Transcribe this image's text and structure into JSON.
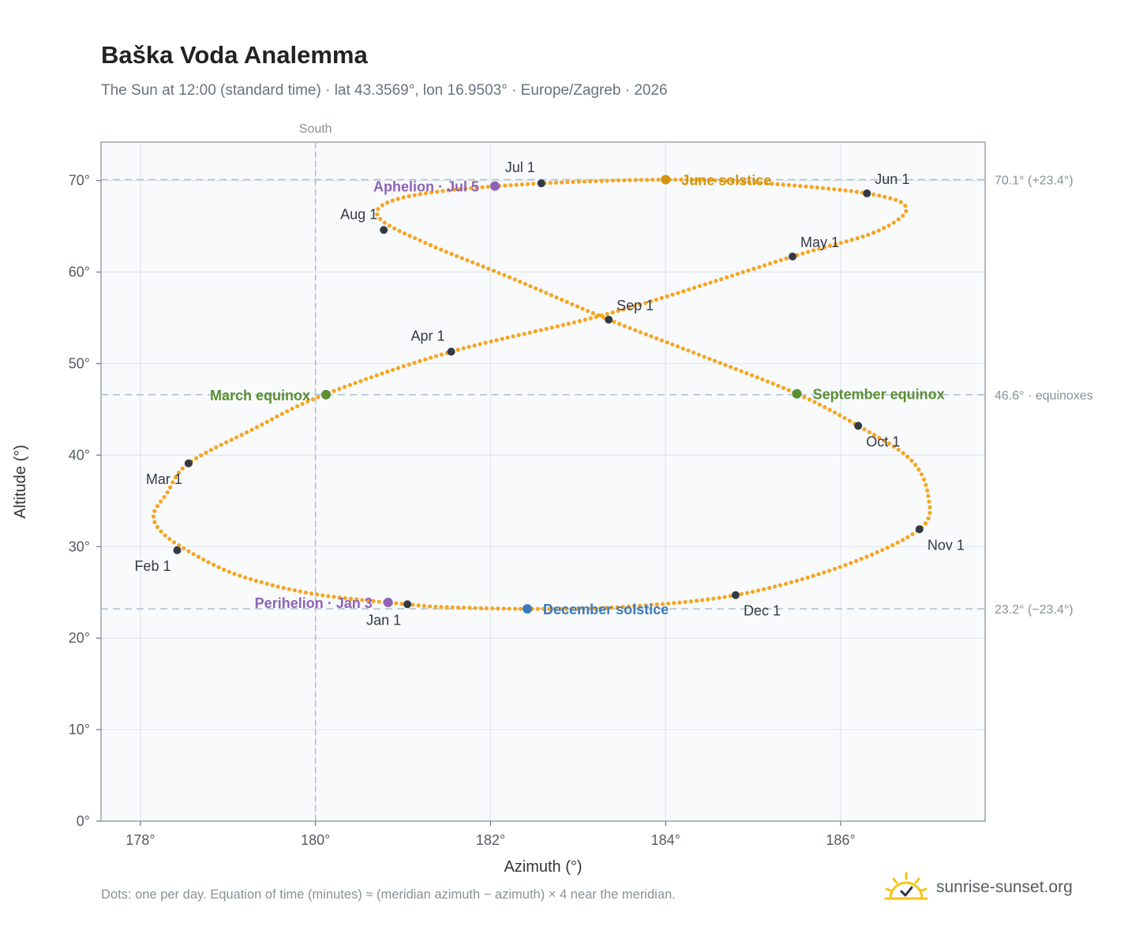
{
  "title": "Baška Voda Analemma",
  "subtitle": "The Sun at 12:00 (standard time) · lat 43.3569°, lon 16.9503° · Europe/Zagreb · 2026",
  "footnote": "Dots: one per day. Equation of time (minutes) ≈ (meridian azimuth − azimuth) × 4 near the meridian.",
  "brand": {
    "name": "sunrise-sunset.org",
    "icon": "sunrise-logo-icon"
  },
  "chart_data": {
    "type": "scatter",
    "xlabel": "Azimuth (°)",
    "ylabel": "Altitude (°)",
    "xlim": [
      177.55,
      187.65
    ],
    "ylim": [
      0,
      74.2
    ],
    "xticks": [
      178,
      180,
      182,
      184,
      186
    ],
    "xtick_labels": [
      "178°",
      "180°",
      "182°",
      "184°",
      "186°"
    ],
    "yticks": [
      0,
      10,
      20,
      30,
      40,
      50,
      60,
      70
    ],
    "ytick_labels": [
      "0°",
      "10°",
      "20°",
      "30°",
      "40°",
      "50°",
      "60°",
      "70°"
    ],
    "grid": true,
    "meridian": {
      "azimuth": 180,
      "label": "South"
    },
    "reference_lines": [
      {
        "altitude": 70.1,
        "label": "70.1° (+23.4°)"
      },
      {
        "altitude": 46.6,
        "label": "46.6° · equinoxes"
      },
      {
        "altitude": 23.2,
        "label": "23.2° (−23.4°)"
      }
    ],
    "path_color": "#f5a623",
    "path": [
      [
        181.05,
        23.7
      ],
      [
        180.5,
        24.2
      ],
      [
        180.0,
        24.8
      ],
      [
        179.5,
        25.8
      ],
      [
        179.0,
        27.3
      ],
      [
        178.55,
        29.5
      ],
      [
        178.25,
        31.5
      ],
      [
        178.15,
        33.5
      ],
      [
        178.3,
        35.8
      ],
      [
        178.55,
        39.1
      ],
      [
        179.3,
        42.9
      ],
      [
        180.1,
        46.6
      ],
      [
        181.55,
        51.3
      ],
      [
        183.4,
        55.6
      ],
      [
        185.45,
        61.7
      ],
      [
        186.4,
        64.4
      ],
      [
        186.75,
        67.0
      ],
      [
        186.3,
        68.6
      ],
      [
        185.0,
        69.8
      ],
      [
        184.0,
        70.1
      ],
      [
        182.6,
        69.7
      ],
      [
        181.4,
        68.8
      ],
      [
        180.8,
        67.5
      ],
      [
        180.75,
        65.7
      ],
      [
        181.3,
        63.0
      ],
      [
        182.2,
        59.5
      ],
      [
        183.35,
        54.8
      ],
      [
        184.4,
        50.9
      ],
      [
        185.5,
        46.7
      ],
      [
        186.2,
        43.2
      ],
      [
        186.8,
        39.5
      ],
      [
        187.0,
        35.5
      ],
      [
        186.9,
        31.9
      ],
      [
        186.0,
        27.8
      ],
      [
        184.8,
        24.7
      ],
      [
        183.5,
        23.4
      ],
      [
        182.45,
        23.2
      ],
      [
        181.45,
        23.4
      ],
      [
        181.05,
        23.7
      ]
    ],
    "month_points": [
      {
        "label": "Jan 1",
        "x": 181.05,
        "y": 23.7,
        "pos": "below-left"
      },
      {
        "label": "Feb 1",
        "x": 178.42,
        "y": 29.6,
        "pos": "below-left"
      },
      {
        "label": "Mar 1",
        "x": 178.55,
        "y": 39.1,
        "pos": "below-left"
      },
      {
        "label": "Apr 1",
        "x": 181.55,
        "y": 51.3,
        "pos": "above-left"
      },
      {
        "label": "May 1",
        "x": 185.45,
        "y": 61.7,
        "pos": "above-right"
      },
      {
        "label": "Jun 1",
        "x": 186.3,
        "y": 68.6,
        "pos": "above-right"
      },
      {
        "label": "Jul 1",
        "x": 182.58,
        "y": 69.7,
        "pos": "above-left"
      },
      {
        "label": "Aug 1",
        "x": 180.78,
        "y": 64.6,
        "pos": "above-left"
      },
      {
        "label": "Sep 1",
        "x": 183.35,
        "y": 54.8,
        "pos": "above-right"
      },
      {
        "label": "Oct 1",
        "x": 186.2,
        "y": 43.2,
        "pos": "below-right"
      },
      {
        "label": "Nov 1",
        "x": 186.9,
        "y": 31.9,
        "pos": "below-right"
      },
      {
        "label": "Dec 1",
        "x": 184.8,
        "y": 24.7,
        "pos": "below-right"
      }
    ],
    "events": [
      {
        "label": "June solstice",
        "x": 184.0,
        "y": 70.1,
        "color": "#d4950f",
        "pos": "right"
      },
      {
        "label": "Aphelion · Jul 5",
        "x": 182.05,
        "y": 69.4,
        "color": "#8e63b5",
        "pos": "left"
      },
      {
        "label": "March equinox",
        "x": 180.12,
        "y": 46.6,
        "color": "#5a8f32",
        "pos": "left"
      },
      {
        "label": "September equinox",
        "x": 185.5,
        "y": 46.7,
        "color": "#5a8f32",
        "pos": "right"
      },
      {
        "label": "Perihelion · Jan 3",
        "x": 180.83,
        "y": 23.9,
        "color": "#8e63b5",
        "pos": "left"
      },
      {
        "label": "December solstice",
        "x": 182.42,
        "y": 23.2,
        "color": "#3a7abf",
        "pos": "right"
      }
    ]
  }
}
